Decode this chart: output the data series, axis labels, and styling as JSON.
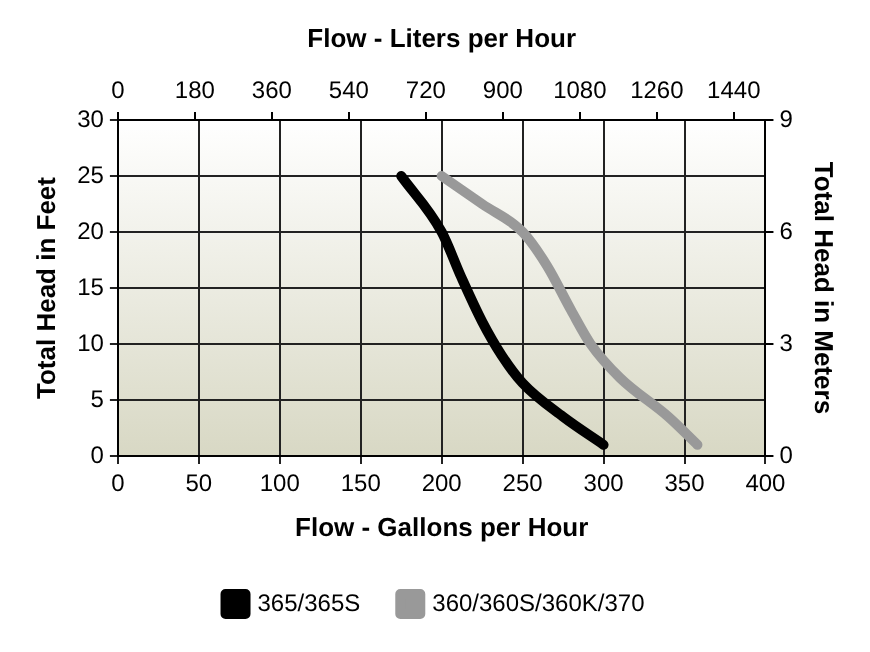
{
  "chart_data": {
    "type": "line",
    "xlabel": "Flow - Gallons per Hour",
    "ylabel": "Total Head in Feet",
    "y2label": "Total Head in Meters",
    "x2label": "Flow - Liters per Hour",
    "xlim": [
      0,
      400
    ],
    "xticks": [
      0,
      50,
      100,
      150,
      200,
      250,
      300,
      350,
      400
    ],
    "ylim": [
      0,
      30
    ],
    "yticks": [
      0,
      5,
      10,
      15,
      20,
      25,
      30
    ],
    "x2lim": [
      0,
      1514
    ],
    "x2ticks": [
      0,
      180,
      360,
      540,
      720,
      900,
      1080,
      1260,
      1440
    ],
    "y2lim": [
      0,
      9
    ],
    "y2ticks": [
      0,
      3,
      6,
      9
    ],
    "grid": true,
    "legend": "bottom",
    "marker": "none",
    "line_style": "solid",
    "series": [
      {
        "name": "365/365S",
        "color": "#000000",
        "x": [
          175,
          200,
          212,
          225,
          237,
          250,
          275,
          300
        ],
        "values": [
          25,
          20,
          16,
          12,
          9,
          6.5,
          3.5,
          1
        ]
      },
      {
        "name": "360/360S/360K/370",
        "color": "#999999",
        "x": [
          200,
          225,
          250,
          265,
          280,
          292,
          310,
          340,
          358
        ],
        "values": [
          25,
          22.5,
          20,
          17,
          13,
          10,
          7,
          3.5,
          1
        ]
      }
    ]
  }
}
